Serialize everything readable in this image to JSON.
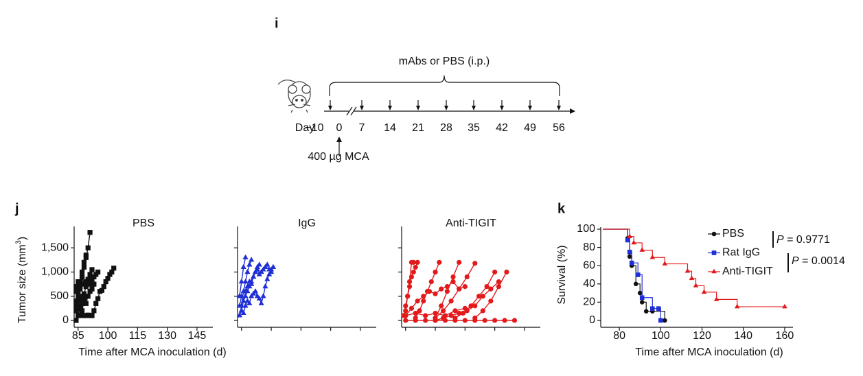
{
  "panel_i": {
    "letter": "i",
    "treatment": "mAbs or PBS (i.p.)",
    "day_label": "Day",
    "days": [
      "−10",
      "0",
      "7",
      "14",
      "21",
      "28",
      "35",
      "42",
      "49",
      "56"
    ],
    "induction": "400 µg MCA"
  },
  "panel_letters": [
    "j",
    "k"
  ],
  "chart_data": [
    {
      "type": "line",
      "title": "PBS",
      "color": "#111111",
      "marker": "square",
      "tick_labels": true,
      "ylabel": [
        "Tumor size (mm",
        "3",
        ")"
      ],
      "xlabel": "Time after MCA inoculation (d)",
      "xlim": [
        83,
        153
      ],
      "xticks": [
        85,
        100,
        115,
        130,
        145
      ],
      "ylim": [
        0,
        1900
      ],
      "yticks": [
        0,
        500,
        {
          "value": 1000,
          "label": "1,000"
        },
        {
          "value": 1500,
          "label": "1,500"
        }
      ],
      "series": [
        {
          "x": [
            84,
            85,
            86,
            87,
            88,
            89,
            90,
            91
          ],
          "values": [
            300,
            500,
            700,
            900,
            1100,
            1300,
            1500,
            1820
          ]
        },
        {
          "x": [
            84,
            85,
            86,
            87,
            88,
            89
          ],
          "values": [
            400,
            600,
            800,
            1000,
            1200,
            1350
          ]
        },
        {
          "x": [
            85,
            86,
            87,
            88,
            89,
            90,
            91,
            92
          ],
          "values": [
            100,
            100,
            120,
            100,
            100,
            110,
            100,
            100
          ]
        },
        {
          "x": [
            92,
            93,
            94,
            95,
            96,
            97,
            98,
            99,
            100,
            101,
            102,
            103
          ],
          "values": [
            100,
            200,
            350,
            450,
            600,
            620,
            700,
            800,
            870,
            950,
            1000,
            1080
          ]
        },
        {
          "x": [
            84,
            85,
            86,
            87,
            88,
            89,
            90,
            91,
            92
          ],
          "values": [
            700,
            800,
            650,
            900,
            750,
            800,
            850,
            950,
            1050
          ]
        },
        {
          "x": [
            84,
            85,
            86,
            87,
            88,
            89,
            90,
            91,
            92,
            93,
            94,
            95
          ],
          "values": [
            200,
            300,
            250,
            450,
            550,
            700,
            800,
            750,
            850,
            900,
            950,
            1000
          ]
        },
        {
          "x": [
            84,
            85,
            86,
            87,
            88,
            89,
            90,
            91,
            92,
            93
          ],
          "values": [
            0,
            100,
            250,
            200,
            400,
            350,
            500,
            600,
            650,
            750
          ]
        },
        {
          "x": [
            84,
            85,
            86,
            87,
            88
          ],
          "values": [
            600,
            400,
            500,
            350,
            450
          ]
        }
      ]
    },
    {
      "type": "line",
      "title": "IgG",
      "color": "#1f2fd6",
      "marker": "triangle",
      "tick_labels": false,
      "xlim": [
        83,
        153
      ],
      "xticks": [
        85,
        100,
        115,
        130,
        145
      ],
      "ylim": [
        0,
        1900
      ],
      "yticks": [
        0,
        500,
        1000,
        1500
      ],
      "series": [
        {
          "x": [
            84,
            85,
            86,
            87
          ],
          "values": [
            500,
            800,
            1100,
            1300
          ]
        },
        {
          "x": [
            84,
            85,
            86,
            87,
            88,
            89,
            90
          ],
          "values": [
            100,
            300,
            600,
            800,
            1000,
            1150,
            1250
          ]
        },
        {
          "x": [
            85,
            86,
            87,
            88,
            89,
            90,
            91,
            92,
            93,
            94,
            95,
            96,
            97,
            98,
            99,
            100,
            101
          ],
          "values": [
            200,
            400,
            500,
            600,
            700,
            800,
            900,
            1000,
            1050,
            950,
            1000,
            1050,
            1100,
            1150,
            1050,
            1000,
            1100
          ]
        },
        {
          "x": [
            84,
            85,
            86,
            87,
            88,
            89,
            90,
            91,
            92,
            93,
            94
          ],
          "values": [
            300,
            500,
            400,
            600,
            700,
            800,
            750,
            900,
            1000,
            1100,
            1150
          ]
        },
        {
          "x": [
            84,
            85,
            86,
            87,
            88,
            89,
            90,
            91,
            92,
            93,
            94,
            95,
            96,
            97,
            98,
            99,
            100,
            101
          ],
          "values": [
            100,
            200,
            150,
            300,
            400,
            350,
            500,
            550,
            600,
            500,
            450,
            350,
            500,
            700,
            850,
            950,
            1050,
            1100
          ]
        }
      ]
    },
    {
      "type": "line",
      "title": "Anti-TIGIT",
      "color": "#e31a1c",
      "marker": "circle",
      "tick_labels": false,
      "xlim": [
        83,
        153
      ],
      "xticks": [
        85,
        100,
        115,
        130,
        145
      ],
      "ylim": [
        0,
        1900
      ],
      "yticks": [
        0,
        500,
        1000,
        1500
      ],
      "series": [
        {
          "x": [
            85,
            86,
            87,
            88,
            89
          ],
          "values": [
            200,
            500,
            800,
            1200,
            1200
          ]
        },
        {
          "x": [
            84,
            85,
            86,
            87,
            88,
            89,
            90,
            91
          ],
          "values": [
            100,
            300,
            500,
            700,
            900,
            1000,
            1100,
            1200
          ]
        },
        {
          "x": [
            90,
            92,
            94,
            96,
            98,
            100,
            102
          ],
          "values": [
            50,
            200,
            400,
            600,
            800,
            1000,
            1200
          ]
        },
        {
          "x": [
            100,
            103,
            106,
            109,
            112
          ],
          "values": [
            50,
            300,
            600,
            900,
            1200
          ]
        },
        {
          "x": [
            100,
            104,
            108,
            112,
            116,
            120
          ],
          "values": [
            50,
            200,
            400,
            650,
            900,
            1180
          ]
        },
        {
          "x": [
            110,
            114,
            118,
            122,
            126,
            130
          ],
          "values": [
            50,
            150,
            300,
            500,
            700,
            1000
          ]
        },
        {
          "x": [
            120,
            124,
            128,
            132,
            136
          ],
          "values": [
            50,
            200,
            400,
            700,
            1000
          ]
        },
        {
          "x": [
            100,
            104,
            108,
            112,
            116,
            120,
            124,
            128,
            132
          ],
          "values": [
            0,
            50,
            100,
            150,
            200,
            300,
            500,
            650,
            800
          ]
        },
        {
          "x": [
            85,
            90,
            95,
            100,
            105,
            110,
            115,
            120,
            125,
            130,
            135,
            140
          ],
          "values": [
            0,
            0,
            0,
            0,
            0,
            0,
            0,
            0,
            0,
            0,
            0,
            0
          ]
        },
        {
          "x": [
            85,
            88,
            91,
            94,
            97,
            100,
            103,
            106,
            109,
            112,
            115
          ],
          "values": [
            100,
            250,
            400,
            500,
            600,
            550,
            650,
            700,
            800,
            650,
            700
          ]
        },
        {
          "x": [
            85,
            90,
            95,
            100,
            105,
            110,
            115
          ],
          "values": [
            100,
            150,
            100,
            150,
            100,
            200,
            250
          ]
        }
      ]
    },
    {
      "type": "step",
      "ylabel": "Survival (%)",
      "xlabel": "Time after MCA inoculation (d)",
      "tick_labels": true,
      "xlim": [
        71,
        164
      ],
      "xticks": [
        80,
        100,
        120,
        140,
        160
      ],
      "ylim": [
        0,
        100
      ],
      "yticks": [
        0,
        20,
        40,
        60,
        80,
        100
      ],
      "series": [
        {
          "name": "PBS",
          "color": "#111111",
          "marker": "circle",
          "x": [
            84,
            85,
            86,
            88,
            90,
            91,
            93,
            96,
            102
          ],
          "values": [
            90,
            70,
            60,
            40,
            30,
            20,
            10,
            10,
            0
          ]
        },
        {
          "name": "Rat IgG",
          "color": "#1f2fd6",
          "marker": "square",
          "x": [
            84,
            85,
            86,
            89,
            91,
            96,
            99,
            100
          ],
          "values": [
            88,
            75,
            63,
            50,
            25,
            13,
            13,
            0
          ]
        },
        {
          "name": "Anti-TIGIT",
          "color": "#e31a1c",
          "marker": "triangle",
          "x": [
            85,
            87,
            91,
            96,
            102,
            113,
            115,
            117,
            121,
            127,
            137,
            160
          ],
          "values": [
            92,
            85,
            77,
            69,
            62,
            54,
            46,
            38,
            31,
            23,
            15,
            15
          ]
        }
      ],
      "p_values": [
        {
          "symbol": "P",
          "text": " = 0.9771"
        },
        {
          "symbol": "P",
          "text": " = 0.0014"
        }
      ]
    }
  ]
}
